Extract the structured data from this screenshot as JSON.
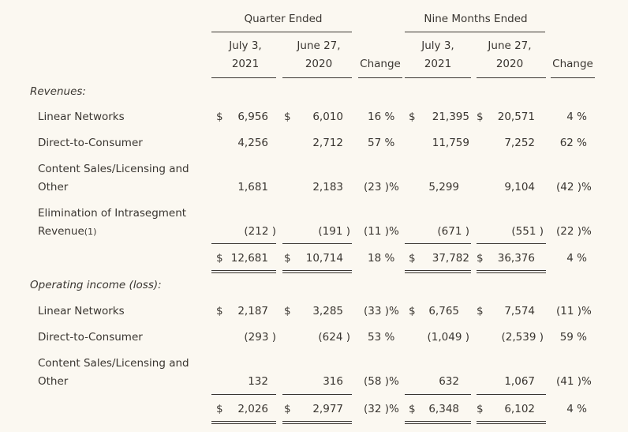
{
  "header": {
    "quarter_group": "Quarter Ended",
    "nine_group": "Nine Months Ended",
    "col_q_2021_line1": "July 3,",
    "col_q_2021_line2": "2021",
    "col_q_2020_line1": "June 27,",
    "col_q_2020_line2": "2020",
    "col_q_change": "Change",
    "col_n_2021_line1": "July 3,",
    "col_n_2021_line2": "2021",
    "col_n_2020_line1": "June 27,",
    "col_n_2020_line2": "2020",
    "col_n_change": "Change"
  },
  "revenues": {
    "section_label": "Revenues:",
    "linear": {
      "label": "Linear Networks",
      "q21": "6,956",
      "q20": "6,010",
      "qchg": "16 %",
      "n21": "21,395",
      "n20": "20,571",
      "nchg": "4 %"
    },
    "dtc": {
      "label": "Direct-to-Consumer",
      "q21": "4,256",
      "q20": "2,712",
      "qchg": "57 %",
      "n21": "11,759",
      "n20": "7,252",
      "nchg": "62 %"
    },
    "content": {
      "label_line1": "Content Sales/Licensing and",
      "label_line2": "Other",
      "q21": "1,681",
      "q20": "2,183",
      "qchg": "(23 )%",
      "n21": "5,299",
      "n20": "9,104",
      "nchg": "(42 )%"
    },
    "elim": {
      "label_line1": "Elimination of Intrasegment",
      "label_line2": "Revenue",
      "footnote": "(1)",
      "q21": "(212 )",
      "q20": "(191 )",
      "qchg": "(11 )%",
      "n21": "(671 )",
      "n20": "(551 )",
      "nchg": "(22 )%"
    },
    "total": {
      "q21": "12,681",
      "q20": "10,714",
      "qchg": "18 %",
      "n21": "37,782",
      "n20": "36,376",
      "nchg": "4 %"
    }
  },
  "operating": {
    "section_label": "Operating income (loss):",
    "linear": {
      "label": "Linear Networks",
      "q21": "2,187",
      "q20": "3,285",
      "qchg": "(33 )%",
      "n21": "6,765",
      "n20": "7,574",
      "nchg": "(11 )%"
    },
    "dtc": {
      "label": "Direct-to-Consumer",
      "q21": "(293 )",
      "q20": "(624 )",
      "qchg": "53 %",
      "n21": "(1,049 )",
      "n20": "(2,539 )",
      "nchg": "59 %"
    },
    "content": {
      "label_line1": "Content Sales/Licensing and",
      "label_line2": "Other",
      "q21": "132",
      "q20": "316",
      "qchg": "(58 )%",
      "n21": "632",
      "n20": "1,067",
      "nchg": "(41 )%"
    },
    "total": {
      "q21": "2,026",
      "q20": "2,977",
      "qchg": "(32 )%",
      "n21": "6,348",
      "n20": "6,102",
      "nchg": "4 %"
    }
  },
  "currency_symbol": "$"
}
